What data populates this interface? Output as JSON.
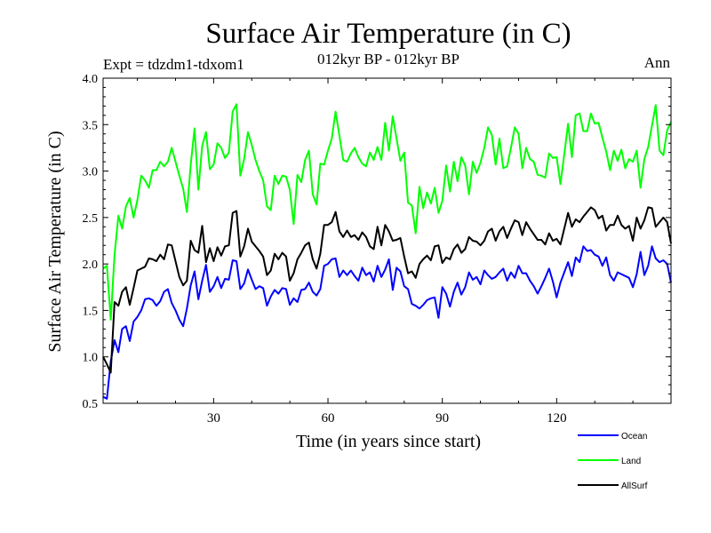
{
  "chart_data": {
    "type": "line",
    "title": "Surface Air Temperature (in C)",
    "subtitle": "012kyr BP - 012kyr BP",
    "experiment": "Expt = tdzdm1-tdxom1",
    "period": "Ann",
    "xlabel": "Time (in years since start)",
    "ylabel": "Surface Air Temperature (in C)",
    "xlim": [
      1,
      150
    ],
    "ylim": [
      0.5,
      4.0
    ],
    "xticks": [
      30,
      60,
      90,
      120
    ],
    "xtick_labels": [
      "30",
      "60",
      "90",
      "120"
    ],
    "yticks": [
      0.5,
      1.0,
      1.5,
      2.0,
      2.5,
      3.0,
      3.5,
      4.0
    ],
    "ytick_labels": [
      "0.5",
      "1.0",
      "1.5",
      "2.0",
      "2.5",
      "3.0",
      "3.5",
      "4.0"
    ],
    "grid": false,
    "legend_position": "bottom-right",
    "x": [
      1,
      2,
      3,
      4,
      5,
      6,
      7,
      8,
      9,
      10,
      11,
      12,
      13,
      14,
      15,
      16,
      17,
      18,
      19,
      20,
      21,
      22,
      23,
      24,
      25,
      26,
      27,
      28,
      29,
      30,
      31,
      32,
      33,
      34,
      35,
      36,
      37,
      38,
      39,
      40,
      41,
      42,
      43,
      44,
      45,
      46,
      47,
      48,
      49,
      50,
      51,
      52,
      53,
      54,
      55,
      56,
      57,
      58,
      59,
      60,
      61,
      62,
      63,
      64,
      65,
      66,
      67,
      68,
      69,
      70,
      71,
      72,
      73,
      74,
      75,
      76,
      77,
      78,
      79,
      80,
      81,
      82,
      83,
      84,
      85,
      86,
      87,
      88,
      89,
      90,
      91,
      92,
      93,
      94,
      95,
      96,
      97,
      98,
      99,
      100,
      101,
      102,
      103,
      104,
      105,
      106,
      107,
      108,
      109,
      110,
      111,
      112,
      113,
      114,
      115,
      116,
      117,
      118,
      119,
      120,
      121,
      122,
      123,
      124,
      125,
      126,
      127,
      128,
      129,
      130,
      131,
      132,
      133,
      134,
      135,
      136,
      137,
      138,
      139,
      140,
      141,
      142,
      143,
      144,
      145,
      146,
      147,
      148,
      149,
      150
    ],
    "series": [
      {
        "name": "Ocean",
        "color": "#0000ff",
        "values": [
          0.57,
          0.55,
          0.95,
          1.18,
          1.05,
          1.3,
          1.33,
          1.17,
          1.38,
          1.43,
          1.5,
          1.62,
          1.63,
          1.61,
          1.55,
          1.6,
          1.7,
          1.73,
          1.58,
          1.5,
          1.4,
          1.33,
          1.52,
          1.77,
          1.92,
          1.62,
          1.82,
          1.99,
          1.7,
          1.76,
          1.86,
          1.74,
          1.84,
          1.83,
          2.04,
          2.03,
          1.73,
          1.79,
          1.94,
          1.83,
          1.73,
          1.76,
          1.74,
          1.55,
          1.65,
          1.72,
          1.68,
          1.74,
          1.73,
          1.56,
          1.63,
          1.59,
          1.72,
          1.73,
          1.8,
          1.7,
          1.66,
          1.73,
          1.98,
          2.0,
          2.05,
          2.06,
          1.86,
          1.93,
          1.88,
          1.93,
          1.87,
          1.82,
          1.96,
          1.88,
          1.91,
          1.81,
          1.98,
          1.86,
          1.94,
          2.05,
          1.72,
          1.96,
          1.92,
          1.76,
          1.73,
          1.57,
          1.55,
          1.52,
          1.56,
          1.61,
          1.63,
          1.64,
          1.42,
          1.75,
          1.68,
          1.54,
          1.7,
          1.8,
          1.67,
          1.75,
          1.91,
          1.83,
          1.86,
          1.78,
          1.93,
          1.88,
          1.84,
          1.86,
          1.91,
          1.95,
          1.82,
          1.91,
          1.85,
          1.98,
          1.9,
          1.9,
          1.82,
          1.76,
          1.68,
          1.76,
          1.85,
          1.95,
          1.81,
          1.64,
          1.8,
          1.91,
          2.02,
          1.87,
          2.07,
          2.02,
          2.19,
          2.14,
          2.15,
          2.1,
          2.08,
          1.98,
          2.07,
          1.88,
          1.82,
          1.91,
          1.89,
          1.87,
          1.85,
          1.75,
          1.89,
          2.13,
          1.88,
          1.98,
          2.19,
          2.06,
          2.02,
          2.04,
          2.0,
          1.8
        ]
      },
      {
        "name": "Land",
        "color": "#00ff00",
        "values": [
          1.95,
          1.98,
          1.4,
          2.1,
          2.52,
          2.38,
          2.62,
          2.71,
          2.5,
          2.69,
          2.95,
          2.9,
          2.82,
          3.01,
          3.01,
          3.1,
          3.05,
          3.1,
          3.25,
          3.1,
          2.95,
          2.81,
          2.56,
          3.07,
          3.46,
          2.8,
          3.27,
          3.42,
          3.02,
          3.07,
          3.3,
          3.25,
          3.14,
          3.2,
          3.64,
          3.72,
          2.95,
          3.13,
          3.42,
          3.28,
          3.12,
          3.0,
          2.9,
          2.62,
          2.58,
          2.95,
          2.86,
          2.95,
          2.94,
          2.8,
          2.43,
          2.96,
          2.88,
          3.12,
          3.22,
          2.75,
          2.64,
          3.08,
          3.07,
          3.22,
          3.35,
          3.64,
          3.38,
          3.12,
          3.1,
          3.19,
          3.25,
          3.15,
          3.08,
          3.05,
          3.2,
          3.12,
          3.26,
          3.12,
          3.52,
          3.22,
          3.59,
          3.35,
          3.11,
          3.2,
          2.66,
          2.63,
          2.33,
          2.83,
          2.6,
          2.77,
          2.65,
          2.82,
          2.55,
          2.68,
          3.06,
          2.78,
          3.1,
          2.89,
          3.15,
          3.06,
          2.75,
          3.1,
          2.98,
          3.09,
          3.25,
          3.47,
          3.39,
          3.07,
          3.35,
          3.03,
          3.05,
          3.25,
          3.47,
          3.4,
          3.03,
          3.25,
          3.13,
          3.1,
          2.96,
          2.95,
          2.93,
          3.19,
          3.14,
          3.15,
          2.86,
          3.18,
          3.51,
          3.15,
          3.6,
          3.62,
          3.43,
          3.43,
          3.62,
          3.51,
          3.52,
          3.36,
          3.21,
          3.01,
          3.22,
          3.11,
          3.23,
          3.03,
          3.13,
          3.1,
          3.22,
          2.82,
          3.13,
          3.26,
          3.49,
          3.71,
          3.22,
          3.17,
          3.44,
          3.53
        ]
      },
      {
        "name": "AllSurf",
        "color": "#000000",
        "values": [
          1.0,
          0.92,
          0.83,
          1.59,
          1.55,
          1.7,
          1.75,
          1.56,
          1.74,
          1.93,
          1.95,
          1.97,
          2.06,
          2.05,
          2.03,
          2.1,
          2.05,
          2.21,
          2.2,
          2.03,
          1.86,
          1.77,
          1.82,
          2.25,
          2.15,
          2.12,
          2.41,
          2.02,
          2.17,
          2.03,
          2.18,
          2.09,
          2.19,
          2.2,
          2.55,
          2.57,
          2.08,
          2.19,
          2.38,
          2.24,
          2.19,
          2.14,
          2.08,
          1.88,
          1.93,
          2.11,
          2.05,
          2.12,
          2.08,
          1.82,
          1.9,
          2.05,
          2.12,
          2.2,
          2.23,
          2.05,
          1.95,
          2.11,
          2.42,
          2.42,
          2.45,
          2.56,
          2.35,
          2.29,
          2.36,
          2.29,
          2.31,
          2.26,
          2.34,
          2.29,
          2.19,
          2.16,
          2.4,
          2.2,
          2.42,
          2.35,
          2.25,
          2.26,
          2.28,
          2.08,
          1.9,
          1.92,
          1.85,
          2.0,
          2.05,
          2.09,
          2.04,
          2.19,
          2.2,
          2.01,
          2.07,
          2.05,
          2.16,
          2.21,
          2.12,
          2.16,
          2.29,
          2.25,
          2.24,
          2.2,
          2.25,
          2.35,
          2.38,
          2.25,
          2.35,
          2.4,
          2.28,
          2.38,
          2.47,
          2.45,
          2.31,
          2.45,
          2.38,
          2.32,
          2.26,
          2.26,
          2.21,
          2.33,
          2.25,
          2.27,
          2.21,
          2.38,
          2.55,
          2.4,
          2.48,
          2.45,
          2.51,
          2.56,
          2.61,
          2.58,
          2.49,
          2.52,
          2.36,
          2.42,
          2.42,
          2.52,
          2.42,
          2.38,
          2.41,
          2.25,
          2.5,
          2.38,
          2.47,
          2.61,
          2.6,
          2.4,
          2.45,
          2.5,
          2.45,
          2.22
        ]
      }
    ]
  }
}
